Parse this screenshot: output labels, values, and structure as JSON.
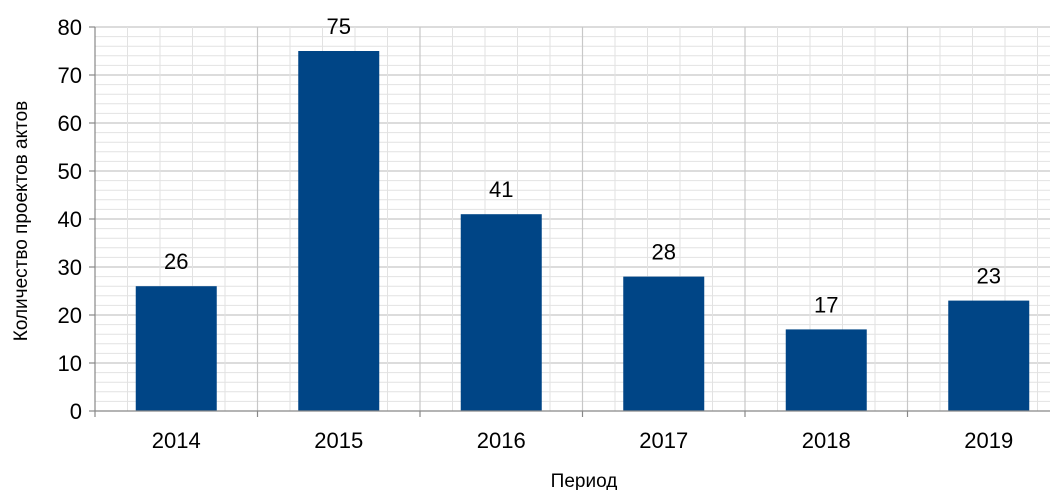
{
  "chart_data": {
    "type": "bar",
    "title": "",
    "xlabel": "Период",
    "ylabel": "Количество проектов актов",
    "categories": [
      "2014",
      "2015",
      "2016",
      "2017",
      "2018",
      "2019"
    ],
    "values": [
      26,
      75,
      41,
      28,
      17,
      23
    ],
    "ylim": [
      0,
      80
    ],
    "yticks": [
      0,
      10,
      20,
      30,
      40,
      50,
      60,
      70,
      80
    ],
    "grid": true,
    "legend": "none",
    "colors": {
      "bar": "#004586",
      "grid_major": "#c8c8c8",
      "grid_minor": "#e2e2e2",
      "axis": "#888888"
    }
  }
}
